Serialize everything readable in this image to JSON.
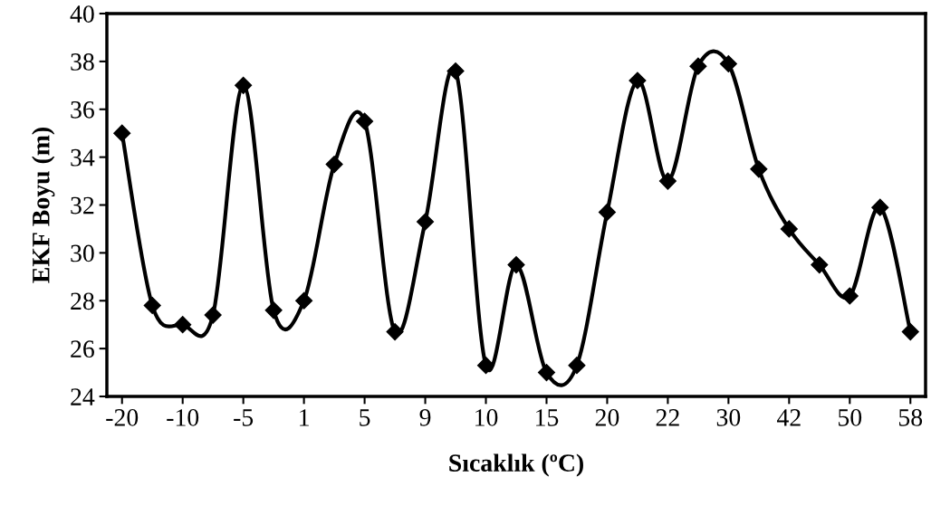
{
  "chart_data": {
    "type": "line",
    "xlabel": "Sıcaklık (ºC)",
    "ylabel": "EKF Boyu (m)",
    "categories": [
      "-20",
      null,
      "-10",
      null,
      "-5",
      null,
      "1",
      null,
      "5",
      null,
      "9",
      null,
      "10",
      null,
      "15",
      null,
      "20",
      null,
      "22",
      null,
      "30",
      null,
      "42",
      null,
      "50",
      null,
      "58"
    ],
    "series": [
      {
        "color": "#000000",
        "values": [
          35,
          27.8,
          27,
          27.4,
          37,
          27.6,
          28,
          33.7,
          35.5,
          26.7,
          31.3,
          37.6,
          25.3,
          29.5,
          25,
          25.3,
          31.7,
          37.2,
          33,
          37.8,
          37.9,
          33.5,
          31,
          29.5,
          28.2,
          31.9,
          26.7
        ]
      }
    ],
    "ylim": [
      24,
      40
    ],
    "yticks": [
      24,
      26,
      28,
      30,
      32,
      34,
      36,
      38,
      40
    ],
    "grid": false,
    "legend": false,
    "marker": "diamond",
    "line_style": "solid"
  }
}
